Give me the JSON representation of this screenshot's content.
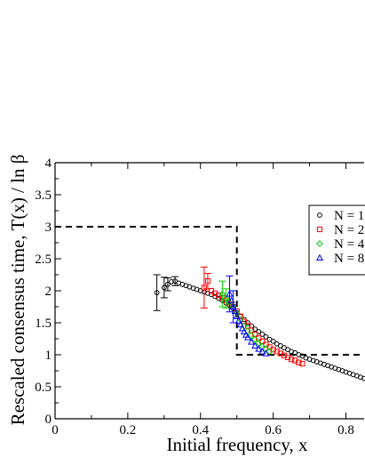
{
  "chart_data": {
    "type": "scatter",
    "xlabel": "Initial frequency, x",
    "ylabel": "Rescaled consensus time, T(x) / ln β",
    "xlim": [
      0,
      0.85
    ],
    "ylim": [
      0,
      4
    ],
    "x_ticks": [
      "0",
      "0.2",
      "0.4",
      "0.6",
      "0.8"
    ],
    "y_ticks": [
      "0",
      "0.5",
      "1",
      "1.5",
      "2",
      "2.5",
      "3",
      "3.5",
      "4"
    ],
    "grid": false,
    "legend": {
      "placement": "top-right",
      "entries": [
        "N = 1",
        "N = 2",
        "N = 4",
        "N = 8"
      ]
    },
    "reference_line": {
      "style": "dashed",
      "color": "#000000",
      "x": [
        0,
        0.5,
        0.5,
        0.85
      ],
      "y": [
        3,
        3,
        1,
        1
      ]
    },
    "series": [
      {
        "name": "N = 1",
        "marker": "circle",
        "color": "#000000",
        "x": [
          0.28,
          0.3,
          0.31,
          0.32,
          0.33,
          0.34,
          0.35,
          0.36,
          0.37,
          0.38,
          0.39,
          0.4,
          0.41,
          0.42,
          0.43,
          0.44,
          0.45,
          0.46,
          0.47,
          0.48,
          0.49,
          0.5,
          0.51,
          0.52,
          0.53,
          0.54,
          0.55,
          0.56,
          0.57,
          0.58,
          0.59,
          0.6,
          0.61,
          0.62,
          0.63,
          0.64,
          0.65,
          0.66,
          0.67,
          0.68,
          0.69,
          0.7,
          0.71,
          0.72,
          0.73,
          0.74,
          0.75,
          0.76,
          0.77,
          0.78,
          0.79,
          0.8,
          0.81,
          0.82,
          0.83,
          0.84,
          0.85
        ],
        "y": [
          1.97,
          2.05,
          2.1,
          2.14,
          2.15,
          2.12,
          2.1,
          2.08,
          2.06,
          2.04,
          2.02,
          2.0,
          1.98,
          1.96,
          1.94,
          1.91,
          1.88,
          1.85,
          1.81,
          1.77,
          1.72,
          1.66,
          1.6,
          1.55,
          1.5,
          1.45,
          1.4,
          1.36,
          1.32,
          1.28,
          1.24,
          1.21,
          1.17,
          1.14,
          1.11,
          1.08,
          1.05,
          1.03,
          1.0,
          0.98,
          0.95,
          0.93,
          0.91,
          0.89,
          0.87,
          0.85,
          0.83,
          0.81,
          0.79,
          0.77,
          0.75,
          0.73,
          0.71,
          0.69,
          0.67,
          0.65,
          0.63
        ],
        "error_bars": [
          {
            "x": 0.28,
            "y": 1.97,
            "err": 0.28
          },
          {
            "x": 0.3,
            "y": 2.05,
            "err": 0.16
          },
          {
            "x": 0.31,
            "y": 2.1,
            "err": 0.1
          },
          {
            "x": 0.33,
            "y": 2.15,
            "err": 0.07
          }
        ]
      },
      {
        "name": "N = 2",
        "marker": "square",
        "color": "#ff0000",
        "x": [
          0.41,
          0.42,
          0.43,
          0.44,
          0.45,
          0.46,
          0.47,
          0.48,
          0.49,
          0.5,
          0.51,
          0.52,
          0.53,
          0.54,
          0.55,
          0.56,
          0.57,
          0.58,
          0.59,
          0.6,
          0.61,
          0.62,
          0.63,
          0.64,
          0.65,
          0.66,
          0.67,
          0.68
        ],
        "y": [
          2.05,
          2.15,
          2.0,
          1.96,
          1.93,
          1.89,
          1.85,
          1.8,
          1.75,
          1.68,
          1.6,
          1.52,
          1.45,
          1.38,
          1.32,
          1.26,
          1.21,
          1.16,
          1.12,
          1.08,
          1.05,
          1.02,
          0.99,
          0.96,
          0.93,
          0.91,
          0.88,
          0.86
        ],
        "error_bars": [
          {
            "x": 0.41,
            "y": 2.05,
            "err": 0.32
          },
          {
            "x": 0.42,
            "y": 2.15,
            "err": 0.12
          }
        ]
      },
      {
        "name": "N = 4",
        "marker": "diamond",
        "color": "#00cc00",
        "x": [
          0.46,
          0.47,
          0.48,
          0.49,
          0.5,
          0.51,
          0.52,
          0.53,
          0.54,
          0.55,
          0.56,
          0.57,
          0.58,
          0.59
        ],
        "y": [
          1.95,
          1.88,
          1.82,
          1.75,
          1.65,
          1.55,
          1.45,
          1.37,
          1.3,
          1.24,
          1.18,
          1.13,
          1.09,
          1.05
        ],
        "error_bars": [
          {
            "x": 0.46,
            "y": 1.95,
            "err": 0.2
          },
          {
            "x": 0.47,
            "y": 1.88,
            "err": 0.15
          }
        ]
      },
      {
        "name": "N = 8",
        "marker": "triangle",
        "color": "#0000ff",
        "x": [
          0.48,
          0.485,
          0.49,
          0.495,
          0.5,
          0.505,
          0.51,
          0.515,
          0.52,
          0.525,
          0.53,
          0.54,
          0.55,
          0.56,
          0.57,
          0.58
        ],
        "y": [
          1.95,
          1.85,
          1.75,
          1.68,
          1.6,
          1.53,
          1.47,
          1.41,
          1.36,
          1.31,
          1.27,
          1.2,
          1.14,
          1.09,
          1.05,
          1.02
        ],
        "error_bars": [
          {
            "x": 0.48,
            "y": 1.95,
            "err": 0.28
          },
          {
            "x": 0.49,
            "y": 1.75,
            "err": 0.25
          }
        ]
      }
    ]
  }
}
